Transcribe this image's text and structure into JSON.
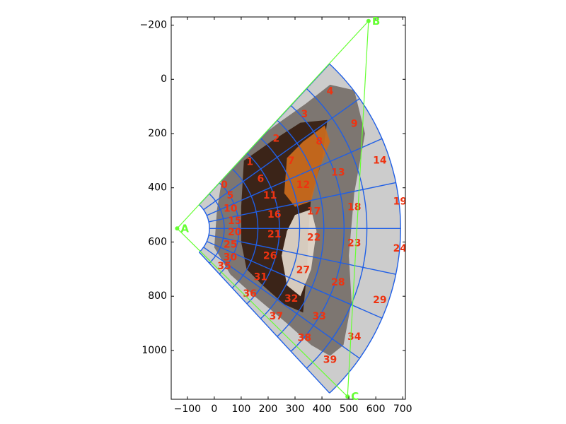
{
  "chart_data": {
    "type": "scatter",
    "title": "",
    "xlabel": "",
    "ylabel": "",
    "xlim": [
      -160,
      710
    ],
    "ylim": [
      1180,
      -230
    ],
    "y_inverted": true,
    "grid": false,
    "x_ticks": [
      -100,
      0,
      100,
      200,
      300,
      400,
      500,
      600,
      700
    ],
    "y_ticks": [
      -200,
      0,
      200,
      400,
      600,
      800,
      1000
    ],
    "x_tick_labels": [
      "−100",
      "0",
      "100",
      "200",
      "300",
      "400",
      "500",
      "600",
      "700"
    ],
    "y_tick_labels": [
      "−200",
      "0",
      "200",
      "400",
      "600",
      "800",
      "1000"
    ],
    "points": [
      {
        "label": "A",
        "x": -138,
        "y": 550
      },
      {
        "label": "B",
        "x": 573,
        "y": -215
      },
      {
        "label": "C",
        "x": 495,
        "y": 1170
      }
    ],
    "triangle_color": "#66ff33",
    "grid_shape": {
      "center": [
        -138,
        550
      ],
      "angle_range_deg": [
        -47,
        47
      ],
      "sectors": 8,
      "radii": [
        120,
        175,
        230,
        300,
        380,
        455,
        545,
        620,
        705,
        830
      ],
      "rings": 9,
      "cell_count": 40
    },
    "cell_labels": [
      {
        "id": "0",
        "x": 37,
        "y": 390
      },
      {
        "id": "1",
        "x": 132,
        "y": 305
      },
      {
        "id": "2",
        "x": 230,
        "y": 220
      },
      {
        "id": "3",
        "x": 335,
        "y": 130
      },
      {
        "id": "4",
        "x": 430,
        "y": 45
      },
      {
        "id": "5",
        "x": 59,
        "y": 430
      },
      {
        "id": "6",
        "x": 172,
        "y": 368
      },
      {
        "id": "7",
        "x": 286,
        "y": 302
      },
      {
        "id": "8",
        "x": 390,
        "y": 230
      },
      {
        "id": "9",
        "x": 520,
        "y": 165
      },
      {
        "id": "10",
        "x": 60,
        "y": 477
      },
      {
        "id": "11",
        "x": 207,
        "y": 430
      },
      {
        "id": "12",
        "x": 330,
        "y": 390
      },
      {
        "id": "13",
        "x": 460,
        "y": 345
      },
      {
        "id": "14",
        "x": 615,
        "y": 300
      },
      {
        "id": "15",
        "x": 76,
        "y": 523
      },
      {
        "id": "16",
        "x": 223,
        "y": 500
      },
      {
        "id": "17",
        "x": 370,
        "y": 488
      },
      {
        "id": "18",
        "x": 520,
        "y": 472
      },
      {
        "id": "19",
        "x": 690,
        "y": 452
      },
      {
        "id": "20",
        "x": 76,
        "y": 565
      },
      {
        "id": "21",
        "x": 223,
        "y": 573
      },
      {
        "id": "22",
        "x": 370,
        "y": 585
      },
      {
        "id": "23",
        "x": 520,
        "y": 605
      },
      {
        "id": "24",
        "x": 690,
        "y": 625
      },
      {
        "id": "25",
        "x": 60,
        "y": 610
      },
      {
        "id": "26",
        "x": 207,
        "y": 652
      },
      {
        "id": "27",
        "x": 330,
        "y": 705
      },
      {
        "id": "28",
        "x": 460,
        "y": 750
      },
      {
        "id": "29",
        "x": 615,
        "y": 815
      },
      {
        "id": "30",
        "x": 59,
        "y": 657
      },
      {
        "id": "31",
        "x": 172,
        "y": 730
      },
      {
        "id": "32",
        "x": 286,
        "y": 810
      },
      {
        "id": "33",
        "x": 390,
        "y": 875
      },
      {
        "id": "34",
        "x": 520,
        "y": 950
      },
      {
        "id": "35",
        "x": 37,
        "y": 690
      },
      {
        "id": "36",
        "x": 132,
        "y": 792
      },
      {
        "id": "37",
        "x": 230,
        "y": 875
      },
      {
        "id": "38",
        "x": 335,
        "y": 955
      },
      {
        "id": "39",
        "x": 430,
        "y": 1035
      }
    ],
    "colors": {
      "sector_fill": "#cccccc",
      "grid_line": "#1f5fe6",
      "label": "#ee3311",
      "image_brown": "#3b2418",
      "image_orange": "#c86a1c",
      "image_gray": "#6e6660",
      "image_cream": "#e8ded0"
    }
  }
}
